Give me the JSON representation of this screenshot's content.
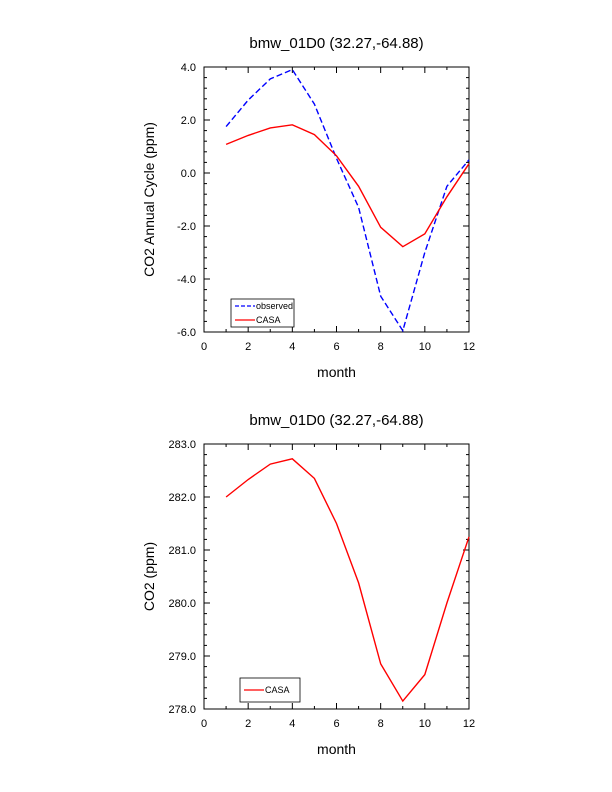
{
  "chart_data": [
    {
      "type": "line",
      "title": "bmw_01D0 (32.27,-64.88)",
      "xlabel": "month",
      "ylabel": "CO2 Annual Cycle (ppm)",
      "xlim": [
        0,
        12
      ],
      "ylim": [
        -6,
        4
      ],
      "x_ticks": [
        0,
        2,
        4,
        6,
        8,
        10,
        12
      ],
      "x_tick_labels": [
        "0",
        "2",
        "4",
        "6",
        "8",
        "10",
        "12"
      ],
      "y_ticks": [
        -6,
        -4,
        -2,
        0,
        2,
        4
      ],
      "y_tick_labels": [
        "-6.0",
        "-4.0",
        "-2.0",
        "0.0",
        "2.0",
        "4.0"
      ],
      "x": [
        1,
        2,
        3,
        4,
        5,
        6,
        7,
        8,
        9,
        10,
        11,
        12
      ],
      "series": [
        {
          "name": "observed",
          "color": "#0000ff",
          "dash": "dashed",
          "values": [
            1.75,
            2.75,
            3.55,
            3.9,
            2.6,
            0.55,
            -1.3,
            -4.65,
            -5.95,
            -3.0,
            -0.5,
            0.5
          ]
        },
        {
          "name": "CASA",
          "color": "#ff0000",
          "dash": "solid",
          "values": [
            1.08,
            1.42,
            1.7,
            1.82,
            1.45,
            0.65,
            -0.5,
            -2.05,
            -2.78,
            -2.3,
            -0.9,
            0.35
          ]
        }
      ],
      "legend": {
        "placement": "bottom-left"
      },
      "grid": false
    },
    {
      "type": "line",
      "title": "bmw_01D0 (32.27,-64.88)",
      "xlabel": "month",
      "ylabel": "CO2 (ppm)",
      "xlim": [
        0,
        12
      ],
      "ylim": [
        278,
        283
      ],
      "x_ticks": [
        0,
        2,
        4,
        6,
        8,
        10,
        12
      ],
      "x_tick_labels": [
        "0",
        "2",
        "4",
        "6",
        "8",
        "10",
        "12"
      ],
      "y_ticks": [
        278,
        279,
        280,
        281,
        282,
        283
      ],
      "y_tick_labels": [
        "278.0",
        "279.0",
        "280.0",
        "281.0",
        "282.0",
        "283.0"
      ],
      "x": [
        1,
        2,
        3,
        4,
        5,
        6,
        7,
        8,
        9,
        10,
        11,
        12
      ],
      "series": [
        {
          "name": "CASA",
          "color": "#ff0000",
          "dash": "solid",
          "values": [
            282.0,
            282.33,
            282.62,
            282.72,
            282.35,
            281.5,
            280.38,
            278.85,
            278.15,
            278.65,
            280.0,
            281.25
          ]
        }
      ],
      "legend": {
        "placement": "bottom-left"
      },
      "grid": false
    }
  ]
}
